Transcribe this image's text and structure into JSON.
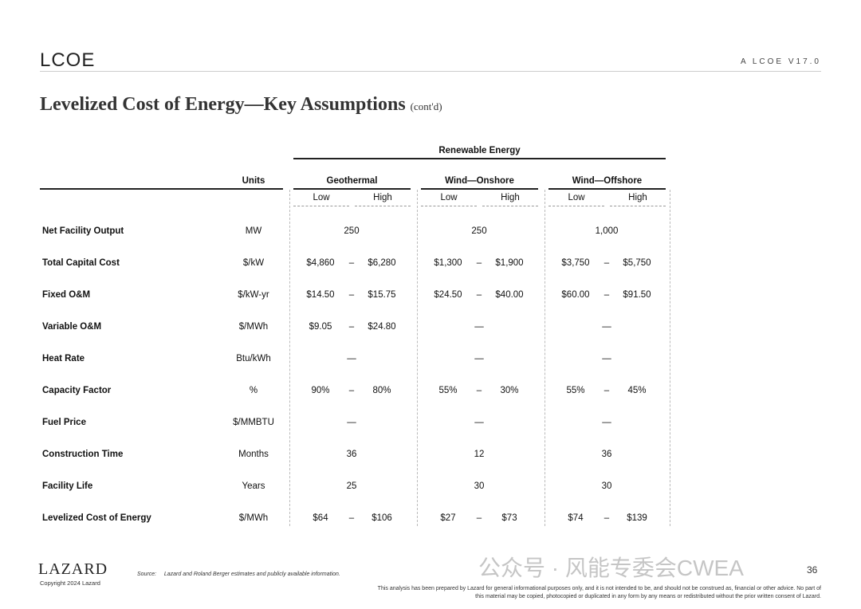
{
  "header": {
    "logo": "LCOE",
    "version": "A   LCOE V17.0"
  },
  "title": {
    "main": "Levelized Cost of Energy—Key Assumptions",
    "suffix": "(cont'd)"
  },
  "table": {
    "group_header": "Renewable Energy",
    "units_header": "Units",
    "sub_headers": {
      "low": "Low",
      "high": "High"
    },
    "dash": "–",
    "technologies": [
      "Geothermal",
      "Wind—Onshore",
      "Wind—Offshore"
    ],
    "rows": [
      {
        "label": "Net Facility Output",
        "units": "MW",
        "values": [
          {
            "single": "250"
          },
          {
            "single": "250"
          },
          {
            "single": "1,000"
          }
        ]
      },
      {
        "label": "Total Capital Cost",
        "units": "$/kW",
        "values": [
          {
            "low": "$4,860",
            "high": "$6,280"
          },
          {
            "low": "$1,300",
            "high": "$1,900"
          },
          {
            "low": "$3,750",
            "high": "$5,750"
          }
        ]
      },
      {
        "label": "Fixed O&M",
        "units": "$/kW-yr",
        "values": [
          {
            "low": "$14.50",
            "high": "$15.75"
          },
          {
            "low": "$24.50",
            "high": "$40.00"
          },
          {
            "low": "$60.00",
            "high": "$91.50"
          }
        ]
      },
      {
        "label": "Variable O&M",
        "units": "$/MWh",
        "values": [
          {
            "low": "$9.05",
            "high": "$24.80"
          },
          {
            "single": "—"
          },
          {
            "single": "—"
          }
        ]
      },
      {
        "label": "Heat Rate",
        "units": "Btu/kWh",
        "values": [
          {
            "single": "—"
          },
          {
            "single": "—"
          },
          {
            "single": "—"
          }
        ]
      },
      {
        "label": "Capacity Factor",
        "units": "%",
        "values": [
          {
            "low": "90%",
            "high": "80%"
          },
          {
            "low": "55%",
            "high": "30%"
          },
          {
            "low": "55%",
            "high": "45%"
          }
        ]
      },
      {
        "label": "Fuel Price",
        "units": "$/MMBTU",
        "values": [
          {
            "single": "—"
          },
          {
            "single": "—"
          },
          {
            "single": "—"
          }
        ]
      },
      {
        "label": "Construction Time",
        "units": "Months",
        "values": [
          {
            "single": "36"
          },
          {
            "single": "12"
          },
          {
            "single": "36"
          }
        ]
      },
      {
        "label": "Facility Life",
        "units": "Years",
        "values": [
          {
            "single": "25"
          },
          {
            "single": "30"
          },
          {
            "single": "30"
          }
        ]
      },
      {
        "label": "Levelized Cost of Energy",
        "units": "$/MWh",
        "values": [
          {
            "low": "$64",
            "high": "$106"
          },
          {
            "low": "$27",
            "high": "$73"
          },
          {
            "low": "$74",
            "high": "$139"
          }
        ]
      }
    ]
  },
  "footer": {
    "brand": "LAZARD",
    "copyright": "Copyright 2024 Lazard",
    "source": "Source:     Lazard and Roland Berger estimates and publicly available information.",
    "disclaimer": "This analysis has been prepared by Lazard for general informational purposes only, and it is not intended to be, and should not be construed as, financial or other advice. No part of this material may be copied, photocopied or duplicated in any form by any means or redistributed without the prior written consent of Lazard.",
    "page": "36",
    "watermark": "公众号 · 风能专委会CWEA"
  }
}
